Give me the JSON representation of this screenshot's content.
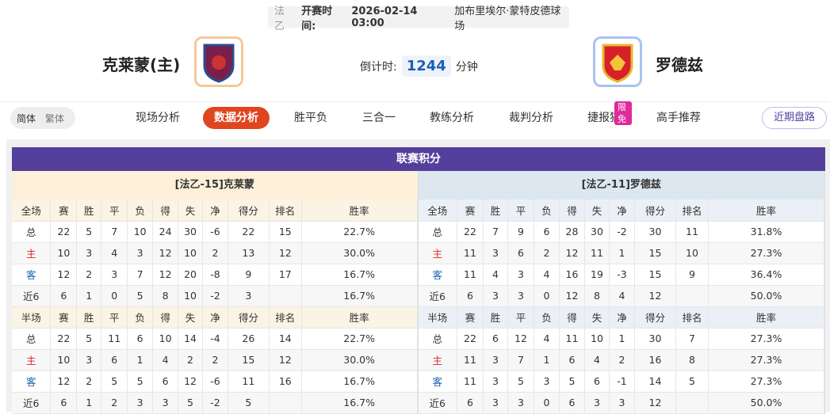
{
  "header": {
    "league": "法乙",
    "time_label": "开赛时间:",
    "time": "2026-02-14 03:00",
    "venue": "加布里埃尔·蒙特皮德球场",
    "home": "克莱蒙(主)",
    "away": "罗德兹",
    "countdown_label": "倒计时:",
    "countdown": "1244",
    "countdown_unit": "分钟"
  },
  "nav": {
    "lang": [
      "简体",
      "繁体"
    ],
    "tabs": [
      "现场分析",
      "数据分析",
      "胜平负",
      "三合一",
      "教练分析",
      "裁判分析",
      "捷报猫",
      "高手推荐"
    ],
    "badge": "限免",
    "button": "近期盘路"
  },
  "standings": {
    "title": "联赛积分",
    "sides": [
      {
        "team": "[法乙-15]克莱蒙",
        "tables": [
          {
            "header": [
              "全场",
              "赛",
              "胜",
              "平",
              "负",
              "得",
              "失",
              "净",
              "得分",
              "排名",
              "胜率"
            ],
            "rows": [
              [
                "总",
                "22",
                "5",
                "7",
                "10",
                "24",
                "30",
                "-6",
                "22",
                "15",
                "22.7%"
              ],
              [
                "主",
                "10",
                "3",
                "4",
                "3",
                "12",
                "10",
                "2",
                "13",
                "12",
                "30.0%"
              ],
              [
                "客",
                "12",
                "2",
                "3",
                "7",
                "12",
                "20",
                "-8",
                "9",
                "17",
                "16.7%"
              ],
              [
                "近6",
                "6",
                "1",
                "0",
                "5",
                "8",
                "10",
                "-2",
                "3",
                "16.7%"
              ]
            ]
          },
          {
            "header": [
              "半场",
              "赛",
              "胜",
              "平",
              "负",
              "得",
              "失",
              "净",
              "得分",
              "排名",
              "胜率"
            ],
            "rows": [
              [
                "总",
                "22",
                "5",
                "11",
                "6",
                "10",
                "14",
                "-4",
                "26",
                "14",
                "22.7%"
              ],
              [
                "主",
                "10",
                "3",
                "6",
                "1",
                "4",
                "2",
                "2",
                "15",
                "12",
                "30.0%"
              ],
              [
                "客",
                "12",
                "2",
                "5",
                "5",
                "6",
                "12",
                "-6",
                "11",
                "16",
                "16.7%"
              ],
              [
                "近6",
                "6",
                "1",
                "2",
                "3",
                "3",
                "5",
                "-2",
                "5",
                "16.7%"
              ]
            ]
          }
        ]
      },
      {
        "team": "[法乙-11]罗德兹",
        "tables": [
          {
            "header": [
              "全场",
              "赛",
              "胜",
              "平",
              "负",
              "得",
              "失",
              "净",
              "得分",
              "排名",
              "胜率"
            ],
            "rows": [
              [
                "总",
                "22",
                "7",
                "9",
                "6",
                "28",
                "30",
                "-2",
                "30",
                "11",
                "31.8%"
              ],
              [
                "主",
                "11",
                "3",
                "6",
                "2",
                "12",
                "11",
                "1",
                "15",
                "10",
                "27.3%"
              ],
              [
                "客",
                "11",
                "4",
                "3",
                "4",
                "16",
                "19",
                "-3",
                "15",
                "9",
                "36.4%"
              ],
              [
                "近6",
                "6",
                "3",
                "3",
                "0",
                "12",
                "8",
                "4",
                "12",
                "50.0%"
              ]
            ]
          },
          {
            "header": [
              "半场",
              "赛",
              "胜",
              "平",
              "负",
              "得",
              "失",
              "净",
              "得分",
              "排名",
              "胜率"
            ],
            "rows": [
              [
                "总",
                "22",
                "6",
                "12",
                "4",
                "11",
                "10",
                "1",
                "30",
                "7",
                "27.3%"
              ],
              [
                "主",
                "11",
                "3",
                "7",
                "1",
                "6",
                "4",
                "2",
                "16",
                "8",
                "27.3%"
              ],
              [
                "客",
                "11",
                "3",
                "5",
                "3",
                "5",
                "6",
                "-1",
                "14",
                "5",
                "27.3%"
              ],
              [
                "近6",
                "6",
                "3",
                "3",
                "0",
                "6",
                "3",
                "3",
                "12",
                "50.0%"
              ]
            ]
          }
        ]
      }
    ]
  }
}
